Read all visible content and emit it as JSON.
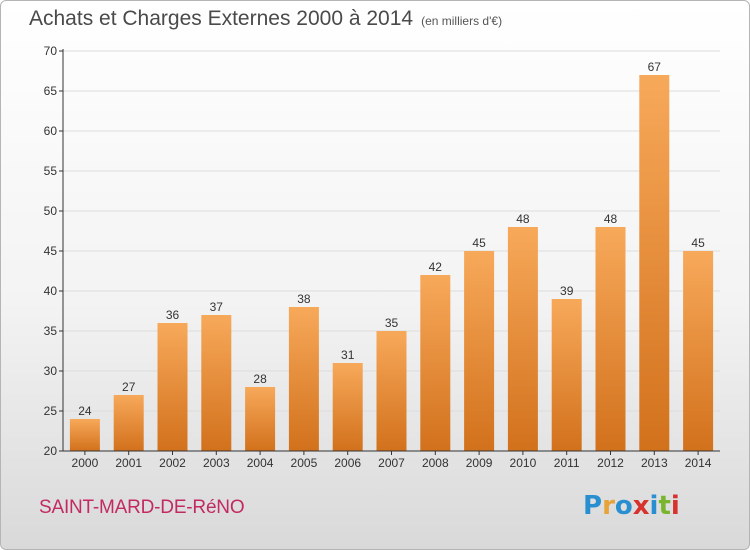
{
  "header": {
    "title": "Achats et Charges Externes 2000 à 2014",
    "subtitle": "(en milliers d'€)"
  },
  "footer": {
    "place": "SAINT-MARD-DE-RéNO",
    "logo": "Proxiti"
  },
  "colors": {
    "bar_light": "#f7a95a",
    "bar_dark": "#d2711c",
    "axis": "#333333",
    "grid": "#dddddd"
  },
  "chart_data": {
    "type": "bar",
    "categories": [
      "2000",
      "2001",
      "2002",
      "2003",
      "2004",
      "2005",
      "2006",
      "2007",
      "2008",
      "2009",
      "2010",
      "2011",
      "2012",
      "2013",
      "2014"
    ],
    "values": [
      24,
      27,
      36,
      37,
      28,
      38,
      31,
      35,
      42,
      45,
      48,
      39,
      48,
      67,
      45
    ],
    "title": "Achats et Charges Externes 2000 à 2014",
    "subtitle": "(en milliers d'€)",
    "ylim": [
      20,
      70
    ],
    "yticks": [
      20,
      25,
      30,
      35,
      40,
      45,
      50,
      55,
      60,
      65,
      70
    ],
    "grid": true
  }
}
